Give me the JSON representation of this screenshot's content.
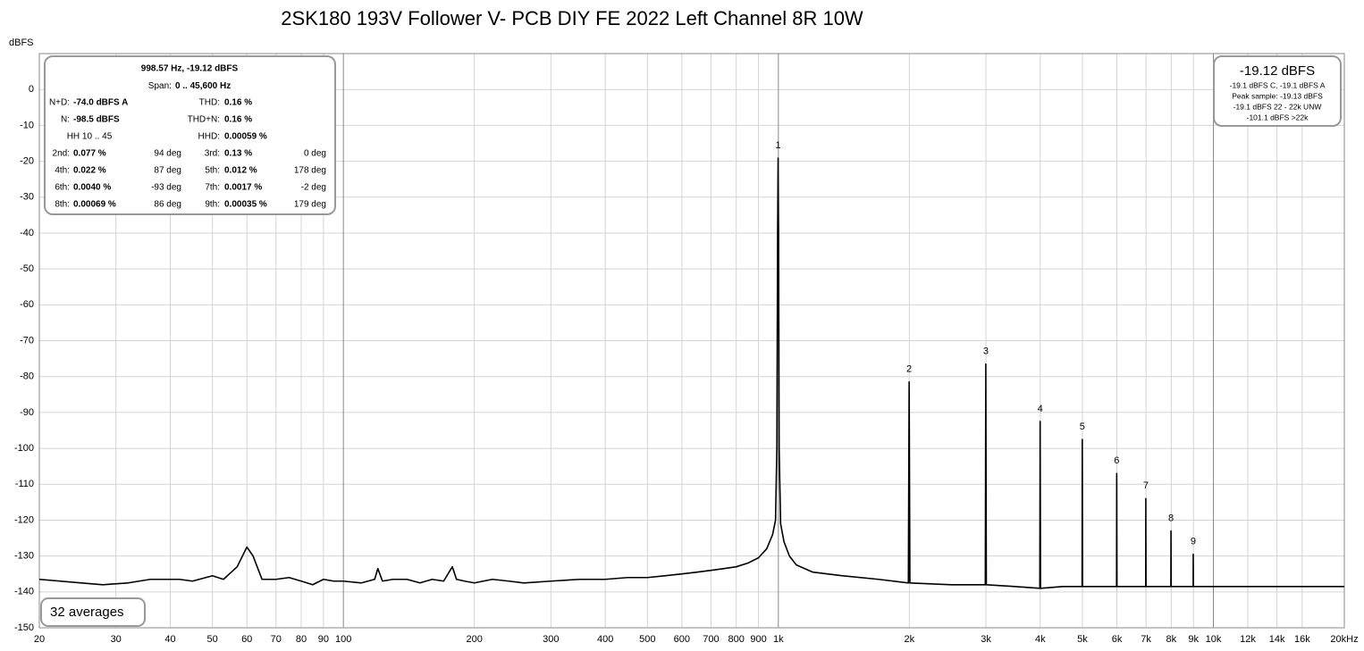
{
  "chart_data": {
    "type": "line",
    "title": "2SK180 193V Follower V- PCB DIY FE 2022 Left Channel 8R 10W",
    "y_label": "dBFS",
    "log_x": true,
    "grid": true,
    "xlim": [
      20,
      20000
    ],
    "ylim": [
      -150,
      10
    ],
    "xticks": [
      20,
      30,
      40,
      50,
      60,
      70,
      80,
      90,
      100,
      200,
      300,
      400,
      500,
      600,
      700,
      800,
      900,
      {
        "value": 1000,
        "label": "1k"
      },
      {
        "value": 2000,
        "label": "2k"
      },
      {
        "value": 3000,
        "label": "3k"
      },
      {
        "value": 4000,
        "label": "4k"
      },
      {
        "value": 5000,
        "label": "5k"
      },
      {
        "value": 6000,
        "label": "6k"
      },
      {
        "value": 7000,
        "label": "7k"
      },
      {
        "value": 8000,
        "label": "8k"
      },
      {
        "value": 9000,
        "label": "9k"
      },
      {
        "value": 10000,
        "label": "10k"
      },
      {
        "value": 12000,
        "label": "12k"
      },
      {
        "value": 14000,
        "label": "14k"
      },
      {
        "value": 16000,
        "label": "16k"
      },
      {
        "value": 20000,
        "label": "20kHz"
      }
    ],
    "yticks": [
      0,
      -10,
      -20,
      -30,
      -40,
      -50,
      -60,
      -70,
      -80,
      -90,
      -100,
      -110,
      -120,
      -130,
      -140,
      -150
    ],
    "series": [
      {
        "color": "#000000",
        "x": [
          20,
          25,
          28,
          32,
          36,
          42,
          45,
          50,
          53,
          57,
          60,
          62,
          65,
          70,
          75,
          80,
          85,
          90,
          95,
          100,
          110,
          118,
          120,
          123,
          130,
          140,
          150,
          160,
          170,
          178,
          182,
          190,
          200,
          220,
          240,
          260,
          300,
          350,
          400,
          450,
          500,
          550,
          600,
          650,
          700,
          750,
          800,
          850,
          900,
          940,
          970,
          985,
          992,
          996,
          998.57,
          1001,
          1004,
          1012,
          1030,
          1060,
          1100,
          1200,
          1400,
          1700,
          1990,
          1998,
          2006,
          2500,
          2990,
          2998,
          3006,
          3500,
          3990,
          3997,
          4005,
          4500,
          4990,
          4996,
          5004,
          5500,
          5990,
          5995,
          6003,
          6500,
          6990,
          6993,
          7001,
          7500,
          7985,
          7990,
          7998,
          8500,
          8985,
          8988,
          8996,
          10000,
          12000,
          15000,
          20000
        ],
        "values": [
          -136.5,
          -137.5,
          -138,
          -137.5,
          -136.5,
          -136.5,
          -137,
          -135.5,
          -136.5,
          -133,
          -127.5,
          -130,
          -136.5,
          -136.5,
          -136,
          -137,
          -138,
          -136.5,
          -137,
          -137,
          -137.5,
          -136.5,
          -133.5,
          -137,
          -136.5,
          -136.5,
          -137.5,
          -136.5,
          -137,
          -133,
          -136.5,
          -137,
          -137.5,
          -136.5,
          -137,
          -137.5,
          -137,
          -136.5,
          -136.5,
          -136,
          -136,
          -135.5,
          -135,
          -134.5,
          -134,
          -133.5,
          -133,
          -132,
          -130.5,
          -128,
          -124,
          -120,
          -100,
          -40,
          -19.12,
          -40,
          -100,
          -121,
          -126,
          -130,
          -132.5,
          -134.5,
          -135.5,
          -136.5,
          -137.5,
          -81.5,
          -137.5,
          -138,
          -138,
          -76.5,
          -138,
          -138.5,
          -139,
          -92.5,
          -139,
          -138.5,
          -138.5,
          -97.5,
          -138.5,
          -138.5,
          -138.5,
          -107,
          -138.5,
          -138.5,
          -138.5,
          -114,
          -138.5,
          -138.5,
          -138.5,
          -123,
          -138.5,
          -138.5,
          -138.5,
          -129.5,
          -138.5,
          -138.5,
          -138.5,
          -138.5,
          -138.5
        ]
      }
    ],
    "annotations": [
      {
        "text": "1",
        "x": 998.57,
        "y": -19.12
      },
      {
        "text": "2",
        "x": 1998,
        "y": -81.5
      },
      {
        "text": "3",
        "x": 2998,
        "y": -76.5
      },
      {
        "text": "4",
        "x": 3997,
        "y": -92.5
      },
      {
        "text": "5",
        "x": 4996,
        "y": -97.5
      },
      {
        "text": "6",
        "x": 5995,
        "y": -107
      },
      {
        "text": "7",
        "x": 6993,
        "y": -114
      },
      {
        "text": "8",
        "x": 7990,
        "y": -123
      },
      {
        "text": "9",
        "x": 8988,
        "y": -129.5
      }
    ],
    "info_box": {
      "frequency_level": "998.57 Hz, -19.12 dBFS",
      "span_label": "Span:",
      "span": "0 .. 45,600 Hz",
      "rows": [
        [
          {
            "label": "N+D:",
            "value": "-74.0 dBFS A"
          },
          {
            "label": "THD:",
            "value": "0.16 %"
          }
        ],
        [
          {
            "label": "N:",
            "value": "-98.5 dBFS"
          },
          {
            "label": "THD+N:",
            "value": "0.16 %"
          }
        ],
        [
          {
            "label": "HH 10 .. 45"
          },
          {
            "label": "HHD:",
            "value": "0.00059 %"
          }
        ],
        [
          {
            "label": "2nd:",
            "value": "0.077 %",
            "phase": "94 deg"
          },
          {
            "label": "3rd:",
            "value": "0.13 %",
            "phase": "0 deg"
          }
        ],
        [
          {
            "label": "4th:",
            "value": "0.022 %",
            "phase": "87 deg"
          },
          {
            "label": "5th:",
            "value": "0.012 %",
            "phase": "178 deg"
          }
        ],
        [
          {
            "label": "6th:",
            "value": "0.0040 %",
            "phase": "-93 deg"
          },
          {
            "label": "7th:",
            "value": "0.0017 %",
            "phase": "-2 deg"
          }
        ],
        [
          {
            "label": "8th:",
            "value": "0.00069 %",
            "phase": "86 deg"
          },
          {
            "label": "9th:",
            "value": "0.00035 %",
            "phase": "179 deg"
          }
        ]
      ]
    },
    "level_box": {
      "level": "-19.12 dBFS",
      "lines": [
        "-19.1 dBFS C, -19.1 dBFS A",
        "Peak sample: -19.13 dBFS",
        "-19.1 dBFS 22 - 22k UNW",
        "-101.1 dBFS >22k"
      ]
    },
    "averages": "32 averages"
  }
}
